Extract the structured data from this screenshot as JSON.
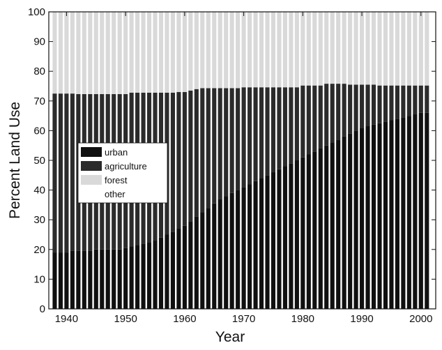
{
  "chart_data": {
    "type": "stacked-bar",
    "xlabel": "Year",
    "ylabel": "Percent Land Use",
    "x": [
      1938,
      1939,
      1940,
      1941,
      1942,
      1943,
      1944,
      1945,
      1946,
      1947,
      1948,
      1949,
      1950,
      1951,
      1952,
      1953,
      1954,
      1955,
      1956,
      1957,
      1958,
      1959,
      1960,
      1961,
      1962,
      1963,
      1964,
      1965,
      1966,
      1967,
      1968,
      1969,
      1970,
      1971,
      1972,
      1973,
      1974,
      1975,
      1976,
      1977,
      1978,
      1979,
      1980,
      1981,
      1982,
      1983,
      1984,
      1985,
      1986,
      1987,
      1988,
      1989,
      1990,
      1991,
      1992,
      1993,
      1994,
      1995,
      1996,
      1997,
      1998,
      1999,
      2000,
      2001
    ],
    "series": [
      {
        "name": "urban",
        "color": "#101010",
        "values": [
          19,
          19,
          19,
          19.5,
          19.5,
          19.5,
          19.5,
          20,
          20,
          20,
          20,
          20,
          20.5,
          21,
          21.5,
          22,
          22.5,
          23,
          24,
          25,
          26,
          27,
          28,
          29.5,
          31,
          32.5,
          34,
          35.5,
          37,
          38,
          39,
          40,
          41,
          42,
          43,
          44,
          45,
          46,
          47,
          48,
          49,
          50,
          51,
          52,
          53,
          54,
          55,
          56,
          57,
          58,
          59,
          60,
          61,
          61.5,
          62,
          62.5,
          63,
          63.5,
          64,
          64.5,
          65,
          65.5,
          66,
          66
        ]
      },
      {
        "name": "agriculture",
        "color": "#2b2b2b",
        "values": [
          53.5,
          53.5,
          53.5,
          53,
          52.8,
          52.8,
          52.8,
          52.3,
          52.3,
          52.3,
          52.3,
          52.3,
          51.8,
          51.8,
          51.3,
          50.8,
          50.3,
          49.8,
          48.8,
          47.8,
          46.8,
          46,
          45,
          44,
          43,
          41.8,
          40.3,
          38.8,
          37.3,
          36.3,
          35.3,
          34.3,
          33.6,
          32.6,
          31.6,
          30.6,
          29.6,
          28.6,
          27.6,
          26.6,
          25.6,
          24.6,
          24.2,
          23.2,
          22.2,
          21.2,
          20.8,
          19.8,
          18.8,
          17.8,
          16.5,
          15.5,
          14.5,
          14,
          13.5,
          12.7,
          12.2,
          11.7,
          11.2,
          10.7,
          10.2,
          9.7,
          9.2,
          9.2
        ]
      },
      {
        "name": "forest",
        "color": "#d9d9d9",
        "values": [
          27.5,
          27.5,
          27.5,
          27.5,
          27.7,
          27.7,
          27.7,
          27.7,
          27.7,
          27.7,
          27.7,
          27.7,
          27.7,
          27.2,
          27.2,
          27.2,
          27.2,
          27.2,
          27.2,
          27.2,
          27.2,
          27,
          27,
          26.5,
          26,
          25.7,
          25.7,
          25.7,
          25.7,
          25.7,
          25.7,
          25.7,
          25.4,
          25.4,
          25.4,
          25.4,
          25.4,
          25.4,
          25.4,
          25.4,
          25.4,
          25.4,
          24.8,
          24.8,
          24.8,
          24.8,
          24.2,
          24.2,
          24.2,
          24.2,
          24.5,
          24.5,
          24.5,
          24.5,
          24.5,
          24.8,
          24.8,
          24.8,
          24.8,
          24.8,
          24.8,
          24.8,
          24.8,
          24.8
        ]
      },
      {
        "name": "other",
        "color": "#ffffff",
        "values": [
          0,
          0,
          0,
          0,
          0,
          0,
          0,
          0,
          0,
          0,
          0,
          0,
          0,
          0,
          0,
          0,
          0,
          0,
          0,
          0,
          0,
          0,
          0,
          0,
          0,
          0,
          0,
          0,
          0,
          0,
          0,
          0,
          0,
          0,
          0,
          0,
          0,
          0,
          0,
          0,
          0,
          0,
          0,
          0,
          0,
          0,
          0,
          0,
          0,
          0,
          0,
          0,
          0,
          0,
          0,
          0,
          0,
          0,
          0,
          0,
          0,
          0,
          0,
          0
        ]
      }
    ],
    "xlim": [
      1937,
      2002.5
    ],
    "xticks": [
      1940,
      1950,
      1960,
      1970,
      1980,
      1990,
      2000
    ],
    "ylim": [
      0,
      100
    ],
    "yticks": [
      0,
      10,
      20,
      30,
      40,
      50,
      60,
      70,
      80,
      90,
      100
    ],
    "legend": "left"
  }
}
